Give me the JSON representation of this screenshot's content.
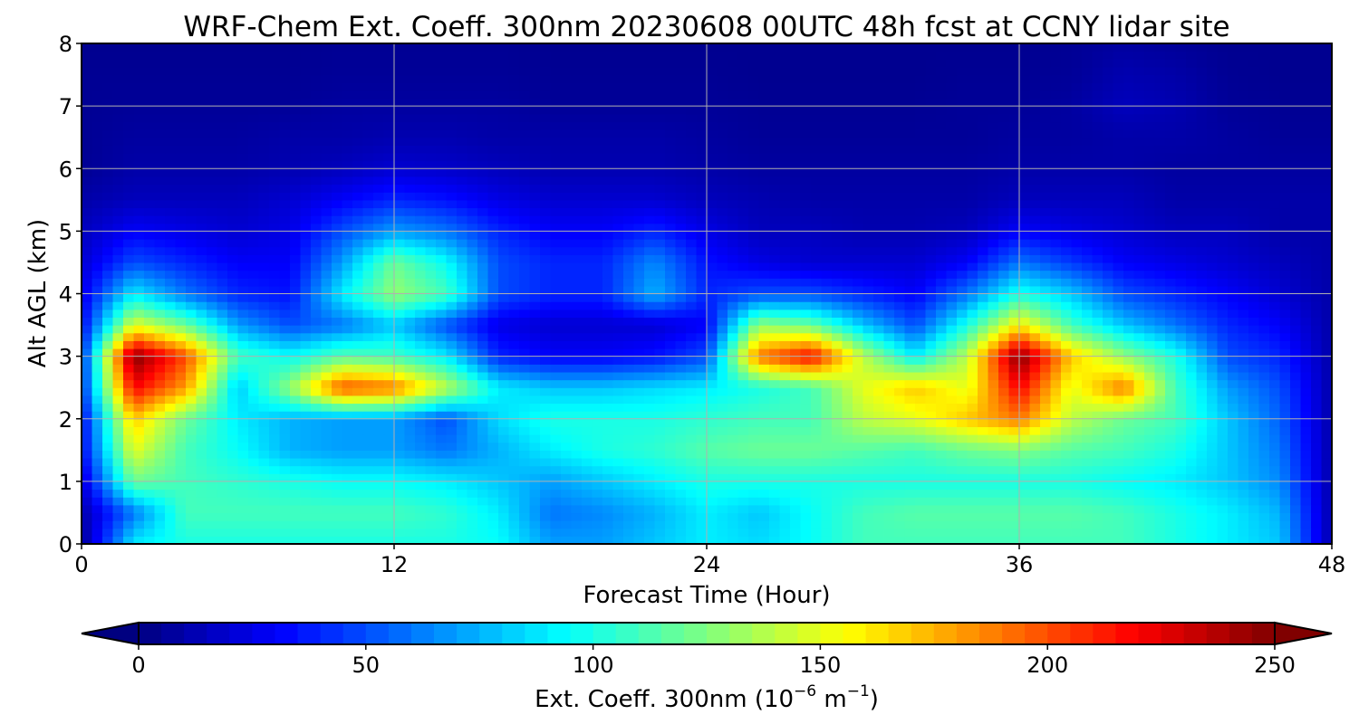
{
  "chart_data": {
    "type": "heatmap",
    "title": "WRF-Chem Ext. Coeff. 300nm  20230608 00UTC 48h fcst at CCNY lidar site",
    "xlabel": "Forecast Time (Hour)",
    "ylabel": "Alt AGL (km)",
    "xlim": [
      0,
      48
    ],
    "ylim": [
      0,
      8
    ],
    "xticks": [
      0,
      12,
      24,
      36,
      48
    ],
    "yticks": [
      0,
      1,
      2,
      3,
      4,
      5,
      6,
      7,
      8
    ],
    "grid": true,
    "colormap": "jet",
    "x": [
      0,
      2,
      4,
      6,
      8,
      10,
      12,
      14,
      16,
      18,
      20,
      22,
      24,
      26,
      28,
      30,
      32,
      34,
      36,
      38,
      40,
      42,
      44,
      46,
      48
    ],
    "y": [
      0,
      0.5,
      1,
      1.5,
      2,
      2.5,
      3,
      3.5,
      4,
      4.5,
      5,
      5.5,
      6,
      6.5,
      7,
      7.5,
      8
    ],
    "z": [
      [
        5,
        90,
        100,
        100,
        100,
        100,
        100,
        100,
        95,
        70,
        70,
        80,
        90,
        85,
        95,
        110,
        110,
        110,
        110,
        110,
        110,
        100,
        90,
        80,
        10
      ],
      [
        10,
        60,
        110,
        110,
        110,
        110,
        110,
        105,
        90,
        60,
        65,
        75,
        90,
        80,
        95,
        110,
        115,
        115,
        115,
        115,
        110,
        100,
        90,
        75,
        10
      ],
      [
        20,
        120,
        110,
        105,
        100,
        95,
        95,
        90,
        80,
        70,
        80,
        90,
        100,
        100,
        100,
        100,
        100,
        100,
        100,
        100,
        95,
        90,
        80,
        65,
        10
      ],
      [
        30,
        150,
        110,
        95,
        75,
        70,
        70,
        60,
        75,
        90,
        100,
        105,
        115,
        120,
        120,
        115,
        110,
        120,
        125,
        115,
        110,
        100,
        80,
        60,
        10
      ],
      [
        30,
        170,
        120,
        90,
        75,
        70,
        70,
        50,
        85,
        100,
        100,
        100,
        105,
        110,
        110,
        140,
        150,
        170,
        190,
        140,
        120,
        110,
        80,
        55,
        10
      ],
      [
        40,
        220,
        180,
        80,
        130,
        200,
        190,
        140,
        90,
        80,
        80,
        85,
        90,
        100,
        110,
        150,
        170,
        150,
        220,
        150,
        190,
        110,
        70,
        50,
        10
      ],
      [
        40,
        250,
        200,
        110,
        95,
        115,
        110,
        90,
        40,
        30,
        30,
        35,
        50,
        190,
        220,
        140,
        90,
        140,
        250,
        170,
        130,
        100,
        50,
        40,
        10
      ],
      [
        30,
        150,
        120,
        70,
        50,
        60,
        80,
        50,
        25,
        20,
        20,
        20,
        30,
        130,
        120,
        80,
        50,
        100,
        160,
        110,
        80,
        60,
        40,
        30,
        10
      ],
      [
        25,
        90,
        60,
        40,
        35,
        90,
        130,
        110,
        50,
        40,
        40,
        75,
        40,
        50,
        50,
        40,
        30,
        60,
        100,
        80,
        50,
        40,
        30,
        20,
        10
      ],
      [
        20,
        50,
        40,
        30,
        30,
        70,
        120,
        95,
        50,
        40,
        40,
        65,
        35,
        25,
        20,
        20,
        20,
        30,
        60,
        45,
        30,
        25,
        20,
        15,
        10
      ],
      [
        15,
        30,
        25,
        20,
        25,
        50,
        70,
        60,
        40,
        30,
        30,
        40,
        25,
        15,
        15,
        12,
        12,
        15,
        30,
        25,
        20,
        15,
        15,
        10,
        10
      ],
      [
        10,
        15,
        15,
        15,
        20,
        30,
        40,
        35,
        25,
        20,
        20,
        20,
        15,
        12,
        10,
        10,
        10,
        10,
        15,
        15,
        15,
        10,
        10,
        10,
        10
      ],
      [
        5,
        10,
        10,
        10,
        12,
        15,
        20,
        18,
        15,
        12,
        12,
        12,
        10,
        8,
        8,
        8,
        8,
        8,
        10,
        10,
        10,
        8,
        8,
        8,
        8
      ],
      [
        5,
        8,
        8,
        8,
        10,
        10,
        12,
        12,
        10,
        10,
        10,
        10,
        8,
        6,
        6,
        6,
        6,
        6,
        8,
        8,
        10,
        10,
        8,
        6,
        6
      ],
      [
        5,
        6,
        6,
        6,
        6,
        8,
        8,
        8,
        8,
        6,
        6,
        6,
        6,
        5,
        5,
        5,
        5,
        6,
        6,
        8,
        15,
        12,
        6,
        5,
        5
      ],
      [
        5,
        5,
        5,
        5,
        5,
        6,
        6,
        6,
        6,
        5,
        5,
        5,
        5,
        4,
        4,
        4,
        4,
        5,
        5,
        6,
        12,
        10,
        5,
        4,
        4
      ],
      [
        4,
        4,
        4,
        4,
        4,
        5,
        5,
        5,
        5,
        4,
        4,
        4,
        4,
        4,
        4,
        4,
        4,
        4,
        4,
        5,
        8,
        6,
        4,
        4,
        4
      ]
    ],
    "colorbar": {
      "label": "Ext. Coeff. 300nm  (10",
      "label_exp1": "−6",
      "label_mid": " m",
      "label_exp2": "−1",
      "label_end": ")",
      "range": [
        0,
        250
      ],
      "ticks": [
        0,
        50,
        100,
        150,
        200,
        250
      ],
      "extend": "both"
    }
  }
}
